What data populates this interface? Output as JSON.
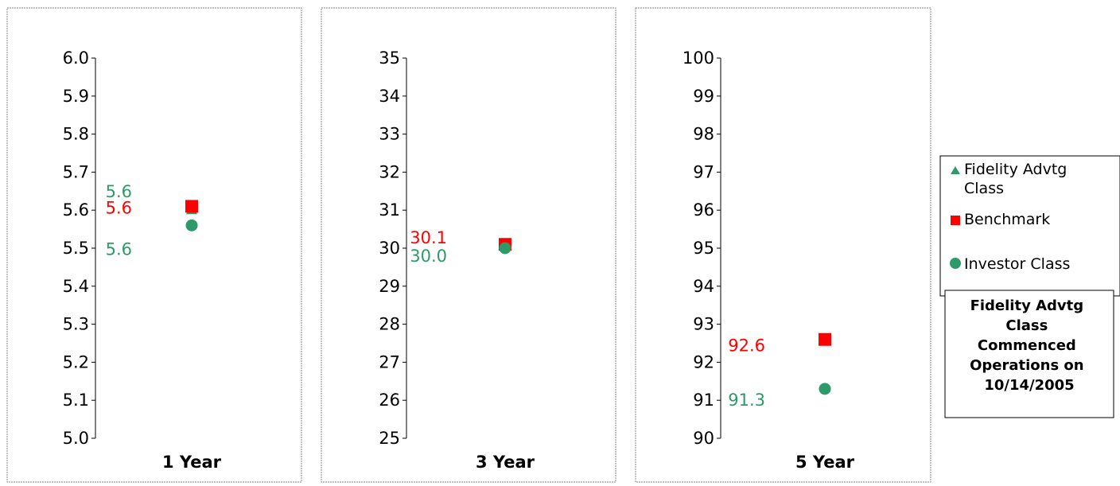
{
  "colors": {
    "fidelity_advtg_class": "#2e9a6a",
    "benchmark": "#ff0000",
    "investor_class": "#2e9a6a"
  },
  "legend": {
    "items": [
      {
        "key": "fidelity_advtg_class",
        "label_lines": [
          "Fidelity Advtg",
          "Class"
        ],
        "marker": "triangle"
      },
      {
        "key": "benchmark",
        "label_lines": [
          "Benchmark"
        ],
        "marker": "square"
      },
      {
        "key": "investor_class",
        "label_lines": [
          "Investor Class"
        ],
        "marker": "circle"
      }
    ]
  },
  "note": {
    "lines": [
      "Fidelity Advtg",
      "Class",
      "Commenced",
      "Operations on",
      "10/14/2005"
    ]
  },
  "chart_data": [
    {
      "type": "scatter",
      "title": "1 Year",
      "ylim": [
        5.0,
        6.0
      ],
      "yticks": [
        "5.0",
        "5.1",
        "5.2",
        "5.3",
        "5.4",
        "5.5",
        "5.6",
        "5.7",
        "5.8",
        "5.9",
        "6.0"
      ],
      "series": [
        {
          "key": "fidelity_advtg_class",
          "value": 5.6,
          "label": "5.6"
        },
        {
          "key": "benchmark",
          "value": 5.61,
          "label": "5.6"
        },
        {
          "key": "investor_class",
          "value": 5.56,
          "label": "5.6"
        }
      ]
    },
    {
      "type": "scatter",
      "title": "3 Year",
      "ylim": [
        25,
        35
      ],
      "yticks": [
        "25",
        "26",
        "27",
        "28",
        "29",
        "30",
        "31",
        "32",
        "33",
        "34",
        "35"
      ],
      "series": [
        {
          "key": "benchmark",
          "value": 30.1,
          "label": "30.1"
        },
        {
          "key": "investor_class",
          "value": 30.0,
          "label": "30.0"
        }
      ]
    },
    {
      "type": "scatter",
      "title": "5 Year",
      "ylim": [
        90,
        100
      ],
      "yticks": [
        "90",
        "91",
        "92",
        "93",
        "94",
        "95",
        "96",
        "97",
        "98",
        "99",
        "100"
      ],
      "series": [
        {
          "key": "benchmark",
          "value": 92.6,
          "label": "92.6"
        },
        {
          "key": "investor_class",
          "value": 91.3,
          "label": "91.3"
        }
      ]
    }
  ]
}
